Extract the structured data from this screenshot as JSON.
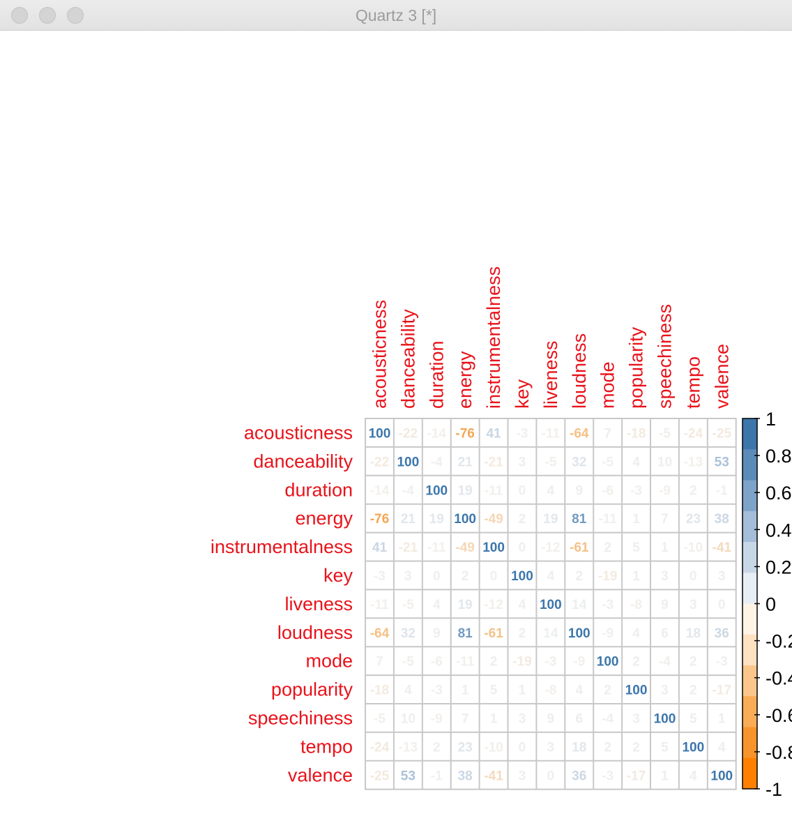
{
  "window": {
    "title": "Quartz 3 [*]"
  },
  "chart_data": {
    "type": "heatmap",
    "variables": [
      "acousticness",
      "danceability",
      "duration",
      "energy",
      "instrumentalness",
      "key",
      "liveness",
      "loudness",
      "mode",
      "popularity",
      "speechiness",
      "tempo",
      "valence"
    ],
    "matrix": [
      [
        100,
        -22,
        -14,
        -76,
        41,
        -3,
        -11,
        -64,
        7,
        -18,
        -5,
        -24,
        -25
      ],
      [
        -22,
        100,
        -4,
        21,
        -21,
        3,
        -5,
        32,
        -5,
        4,
        10,
        -13,
        53
      ],
      [
        -14,
        -4,
        100,
        19,
        -11,
        0,
        4,
        9,
        -6,
        -3,
        -9,
        2,
        -1
      ],
      [
        -76,
        21,
        19,
        100,
        -49,
        2,
        19,
        81,
        -11,
        1,
        7,
        23,
        38
      ],
      [
        41,
        -21,
        -11,
        -49,
        100,
        0,
        -12,
        -61,
        2,
        5,
        1,
        -10,
        -41
      ],
      [
        -3,
        3,
        0,
        2,
        0,
        100,
        4,
        2,
        -19,
        1,
        3,
        0,
        3
      ],
      [
        -11,
        -5,
        4,
        19,
        -12,
        4,
        100,
        14,
        -3,
        -8,
        9,
        3,
        0
      ],
      [
        -64,
        32,
        9,
        81,
        -61,
        2,
        14,
        100,
        -9,
        4,
        6,
        18,
        36
      ],
      [
        7,
        -5,
        -6,
        -11,
        2,
        -19,
        -3,
        -9,
        100,
        2,
        -4,
        2,
        -3
      ],
      [
        -18,
        4,
        -3,
        1,
        5,
        1,
        -8,
        4,
        2,
        100,
        3,
        2,
        -17
      ],
      [
        -5,
        10,
        -9,
        7,
        1,
        3,
        9,
        6,
        -4,
        3,
        100,
        5,
        1
      ],
      [
        -24,
        -13,
        2,
        23,
        -10,
        0,
        3,
        18,
        2,
        2,
        5,
        100,
        4
      ],
      [
        -25,
        53,
        -1,
        38,
        -41,
        3,
        0,
        36,
        -3,
        -17,
        1,
        4,
        100
      ]
    ],
    "colorbar": {
      "ticks": [
        "1",
        "0.8",
        "0.6",
        "0.4",
        "0.2",
        "0",
        "-0.2",
        "-0.4",
        "-0.6",
        "-0.8",
        "-1"
      ],
      "bins_top_to_bottom": [
        "#3c76ab",
        "#5b8bb9",
        "#7ea3c9",
        "#a4bdd9",
        "#c8d7e8",
        "#e8eef5",
        "#fff3e6",
        "#fde1c1",
        "#fbc68b",
        "#f9ac55",
        "#f7942c",
        "#ff8000"
      ]
    }
  }
}
